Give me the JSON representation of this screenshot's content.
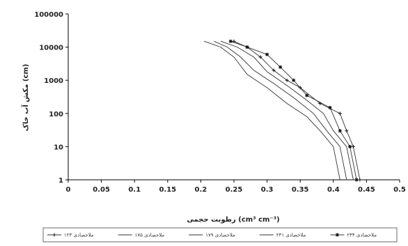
{
  "chart_data": {
    "type": "line",
    "title": "",
    "xlabel": "رطوبت حجمی (cm³ cm⁻³)",
    "ylabel": "مکش آب خاک (cm)",
    "xlim": [
      0,
      0.5
    ],
    "ylim": [
      1,
      100000
    ],
    "yscale": "log",
    "x_ticks": [
      0,
      0.05,
      0.1,
      0.15,
      0.2,
      0.25,
      0.3,
      0.35,
      0.4,
      0.45,
      0.5
    ],
    "x_tick_labels": [
      "0",
      "0.05",
      "0.1",
      "0.15",
      "0.2",
      "0.25",
      "0.3",
      "0.35",
      "0.4",
      "0.45",
      "0.5"
    ],
    "y_ticks": [
      1,
      10,
      100,
      1000,
      10000,
      100000
    ],
    "y_tick_labels": [
      "1",
      "10",
      "100",
      "1000",
      "10000",
      "100000"
    ],
    "grid": false,
    "legend": "bottom",
    "series": [
      {
        "name": "ملاحصادی ۱۲۳",
        "marker": "plus",
        "points": [
          [
            0.44,
            1
          ],
          [
            0.43,
            10
          ],
          [
            0.42,
            30
          ],
          [
            0.41,
            100
          ],
          [
            0.38,
            200
          ],
          [
            0.35,
            600
          ],
          [
            0.33,
            1000
          ],
          [
            0.31,
            2000
          ],
          [
            0.29,
            5000
          ],
          [
            0.27,
            10000
          ],
          [
            0.25,
            15000
          ]
        ]
      },
      {
        "name": "ملاحصادی ۱۷۵",
        "marker": "none",
        "points": [
          [
            0.42,
            1
          ],
          [
            0.41,
            10
          ],
          [
            0.39,
            30
          ],
          [
            0.37,
            100
          ],
          [
            0.34,
            300
          ],
          [
            0.31,
            800
          ],
          [
            0.28,
            2000
          ],
          [
            0.26,
            5000
          ],
          [
            0.24,
            10000
          ],
          [
            0.22,
            15000
          ]
        ]
      },
      {
        "name": "ملاحصادی ۱۷۹",
        "marker": "none",
        "points": [
          [
            0.43,
            1
          ],
          [
            0.42,
            10
          ],
          [
            0.4,
            30
          ],
          [
            0.385,
            100
          ],
          [
            0.36,
            250
          ],
          [
            0.33,
            700
          ],
          [
            0.3,
            1800
          ],
          [
            0.28,
            5000
          ],
          [
            0.255,
            10000
          ],
          [
            0.23,
            15000
          ]
        ]
      },
      {
        "name": "ملاحصادی ۲۳۱",
        "marker": "none",
        "points": [
          [
            0.41,
            1
          ],
          [
            0.4,
            10
          ],
          [
            0.38,
            30
          ],
          [
            0.36,
            80
          ],
          [
            0.33,
            200
          ],
          [
            0.3,
            600
          ],
          [
            0.27,
            1500
          ],
          [
            0.25,
            5000
          ],
          [
            0.23,
            10000
          ],
          [
            0.205,
            15000
          ]
        ]
      },
      {
        "name": "ملاحصادی ۲۴۴",
        "marker": "star",
        "points": [
          [
            0.435,
            1
          ],
          [
            0.425,
            10
          ],
          [
            0.41,
            30
          ],
          [
            0.395,
            150
          ],
          [
            0.36,
            350
          ],
          [
            0.34,
            1000
          ],
          [
            0.32,
            2500
          ],
          [
            0.3,
            6000
          ],
          [
            0.27,
            10000
          ],
          [
            0.245,
            15000
          ]
        ]
      }
    ]
  }
}
